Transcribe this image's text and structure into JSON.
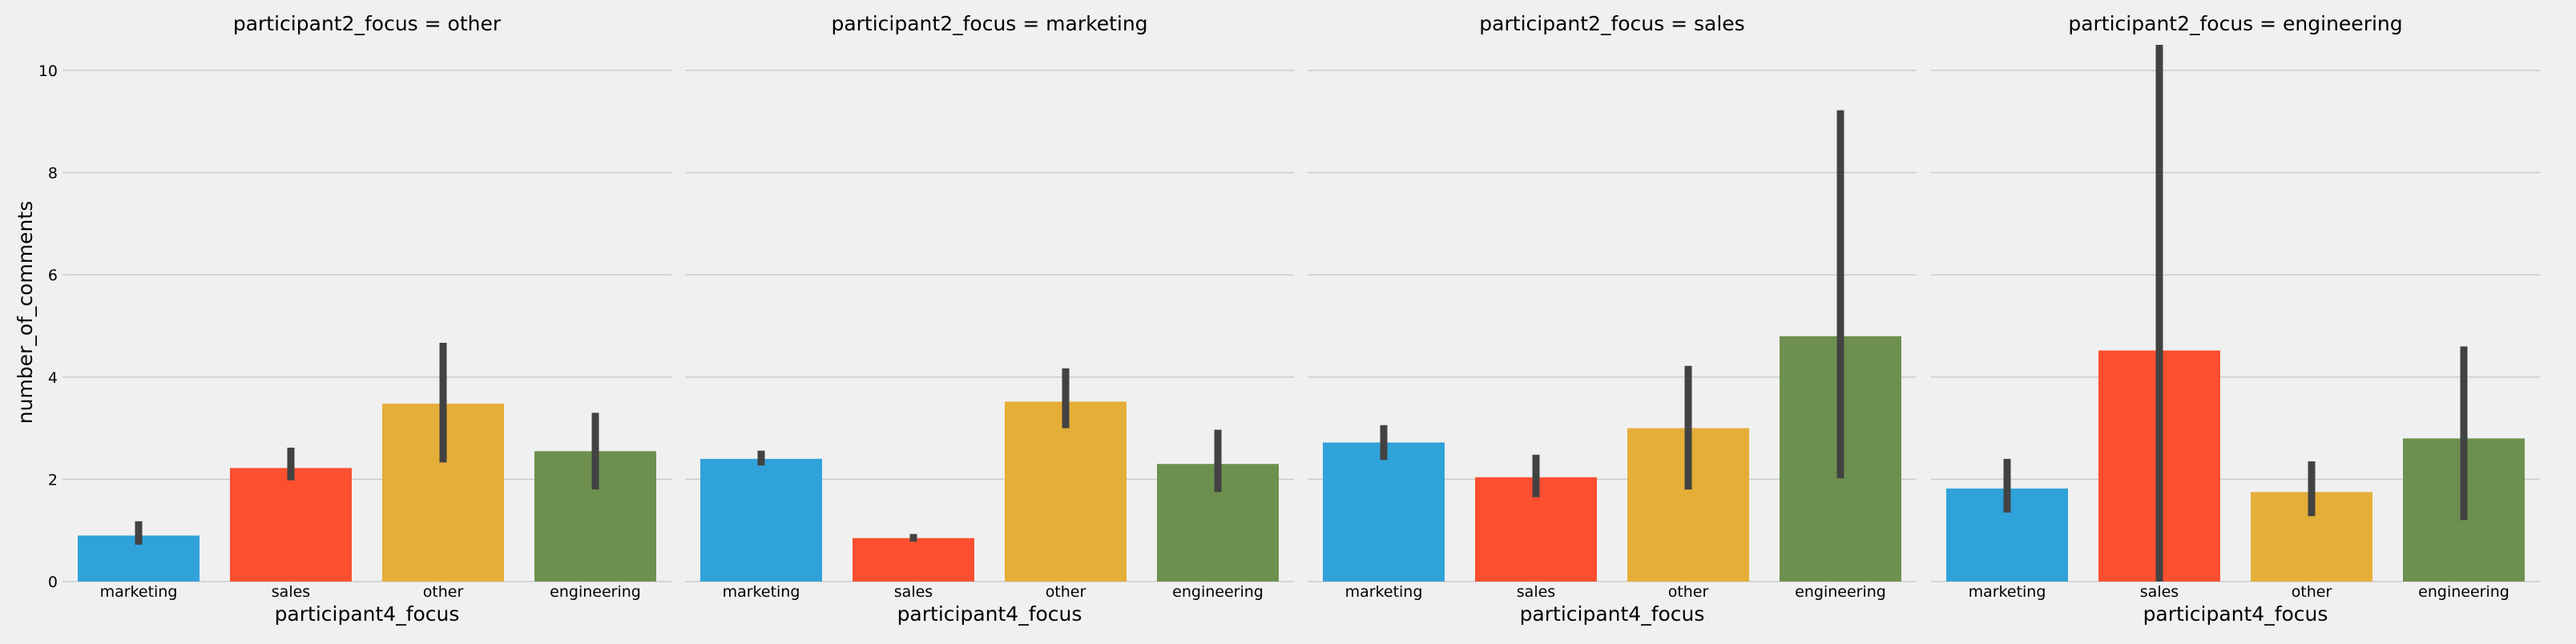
{
  "chart_data": {
    "type": "bar",
    "facet_variable": "participant2_focus",
    "ylabel": "number_of_comments",
    "xlabel": "participant4_focus",
    "categories": [
      "marketing",
      "sales",
      "other",
      "engineering"
    ],
    "colors": [
      "#30a2da",
      "#fc4f30",
      "#e5ae38",
      "#6d904f"
    ],
    "ylim": [
      0,
      10.5
    ],
    "yticks": [
      0,
      2,
      4,
      6,
      8,
      10
    ],
    "grid": true,
    "facets": [
      {
        "title": "participant2_focus = other",
        "values": [
          0.9,
          2.22,
          3.48,
          2.55
        ],
        "ci": [
          [
            0.72,
            1.18
          ],
          [
            1.98,
            2.62
          ],
          [
            2.33,
            4.67
          ],
          [
            1.8,
            3.3
          ]
        ]
      },
      {
        "title": "participant2_focus = marketing",
        "values": [
          2.4,
          0.85,
          3.52,
          2.3
        ],
        "ci": [
          [
            2.27,
            2.56
          ],
          [
            0.78,
            0.93
          ],
          [
            3.0,
            4.17
          ],
          [
            1.75,
            2.97
          ]
        ]
      },
      {
        "title": "participant2_focus = sales",
        "values": [
          2.72,
          2.04,
          3.0,
          4.8
        ],
        "ci": [
          [
            2.38,
            3.06
          ],
          [
            1.65,
            2.48
          ],
          [
            1.8,
            4.22
          ],
          [
            2.02,
            9.22
          ]
        ]
      },
      {
        "title": "participant2_focus = engineering",
        "values": [
          1.82,
          4.52,
          1.75,
          2.8
        ],
        "ci": [
          [
            1.35,
            2.4
          ],
          [
            0.0,
            10.5
          ],
          [
            1.28,
            2.35
          ],
          [
            1.2,
            4.6
          ]
        ]
      }
    ]
  }
}
